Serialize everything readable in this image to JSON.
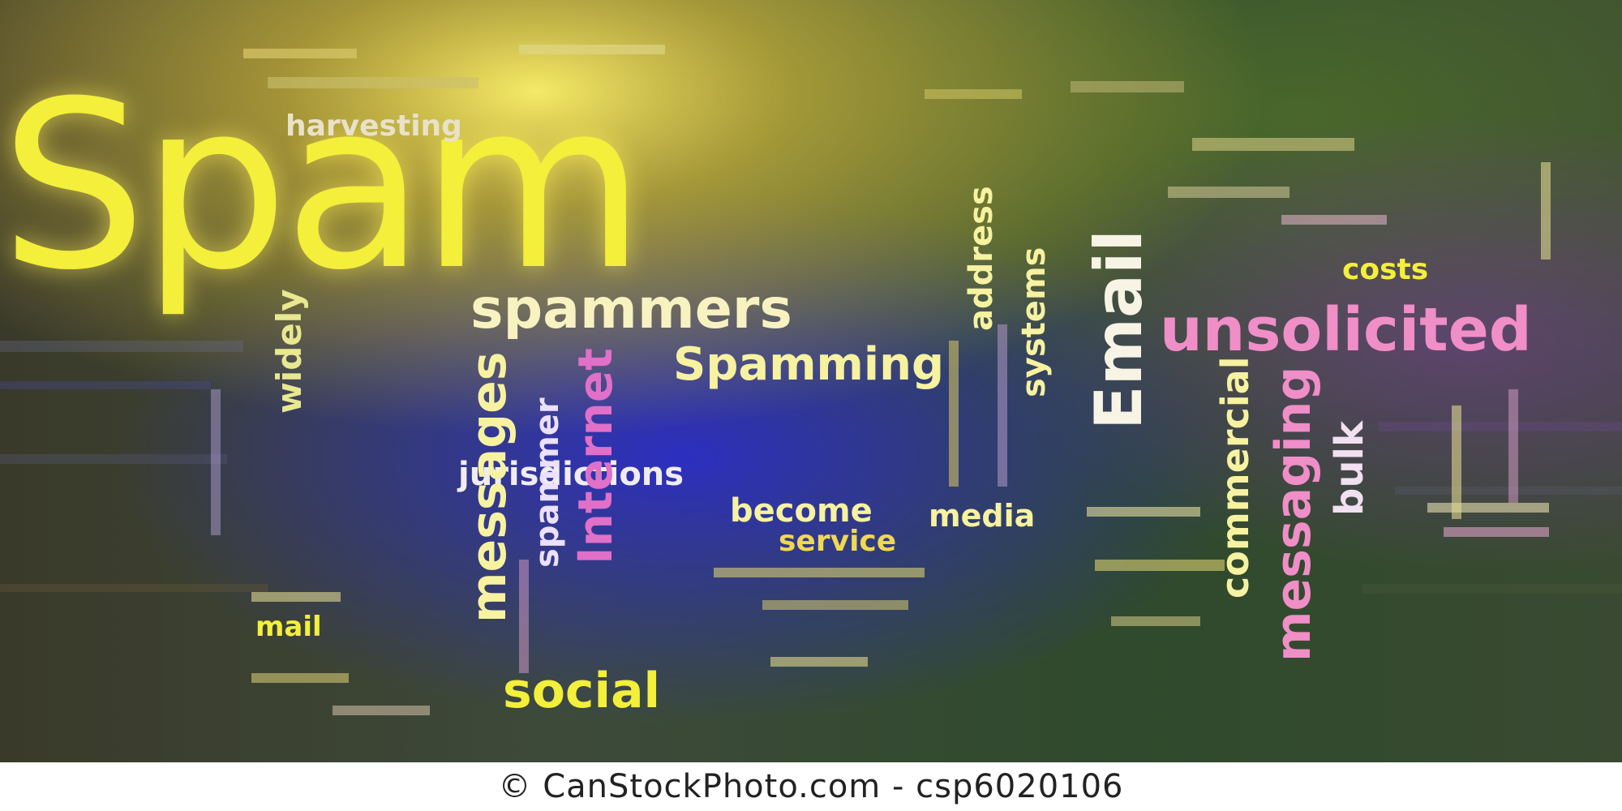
{
  "words": {
    "spam": "Spam",
    "spammers": "spammers",
    "spamming": "Spamming",
    "unsolicited": "unsolicited",
    "email": "Email",
    "messages": "messages",
    "spammer": "spammer",
    "internet": "Internet",
    "widely": "widely",
    "jurisdictions": "jurisdictions",
    "become": "become",
    "media": "media",
    "service": "service",
    "social": "social",
    "commercial": "commercial",
    "messaging": "messaging",
    "bulk": "bulk",
    "costs": "costs",
    "address": "address",
    "systems": "systems",
    "harvesting": "harvesting",
    "mail": "mail"
  },
  "footer": {
    "credit": "© CanStockPhoto.com - csp6020106"
  },
  "colors": {
    "yellow": "#f3ef3a",
    "pale_yellow": "#f6f2a0",
    "white": "#f7f4e6",
    "pink": "#f08ec8",
    "magenta": "#d96cc2"
  }
}
